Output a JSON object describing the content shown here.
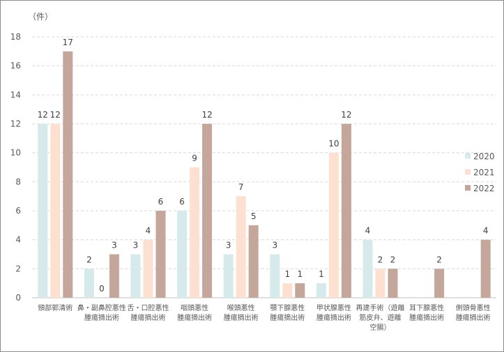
{
  "chart_data": {
    "type": "bar",
    "title": "",
    "unit_label": "（件）",
    "xlabel": "",
    "ylabel": "",
    "ylim": [
      0,
      18
    ],
    "yticks": [
      0,
      2,
      4,
      6,
      8,
      10,
      12,
      14,
      16,
      18
    ],
    "grid": "horizontal-dashed",
    "legend_position": "right",
    "categories": [
      [
        "頸部郭清術"
      ],
      [
        "鼻・副鼻腔悪性",
        "腫瘍摘出術"
      ],
      [
        "舌・口腔悪性",
        "腫瘍摘出術"
      ],
      [
        "咽頭悪性",
        "腫瘍摘出術"
      ],
      [
        "喉頭悪性",
        "腫瘍摘出術"
      ],
      [
        "顎下腺悪性",
        "腫瘍摘出術"
      ],
      [
        "甲状腺悪性",
        "腫瘍摘出術"
      ],
      [
        "再建手術（遊離",
        "筋皮弁、遊離",
        "空腸）"
      ],
      [
        "耳下腺悪性",
        "腫瘍摘出術"
      ],
      [
        "側頭骨悪性",
        "腫瘍摘出術"
      ]
    ],
    "series": [
      {
        "name": "2020",
        "color": "#d6eaec",
        "values": [
          12,
          2,
          3,
          6,
          3,
          3,
          1,
          4,
          null,
          null
        ]
      },
      {
        "name": "2021",
        "color": "#fde0d0",
        "values": [
          12,
          0,
          4,
          9,
          7,
          1,
          10,
          2,
          null,
          null
        ]
      },
      {
        "name": "2022",
        "color": "#c4a69a",
        "values": [
          17,
          3,
          6,
          12,
          5,
          1,
          12,
          2,
          2,
          4
        ]
      }
    ]
  }
}
